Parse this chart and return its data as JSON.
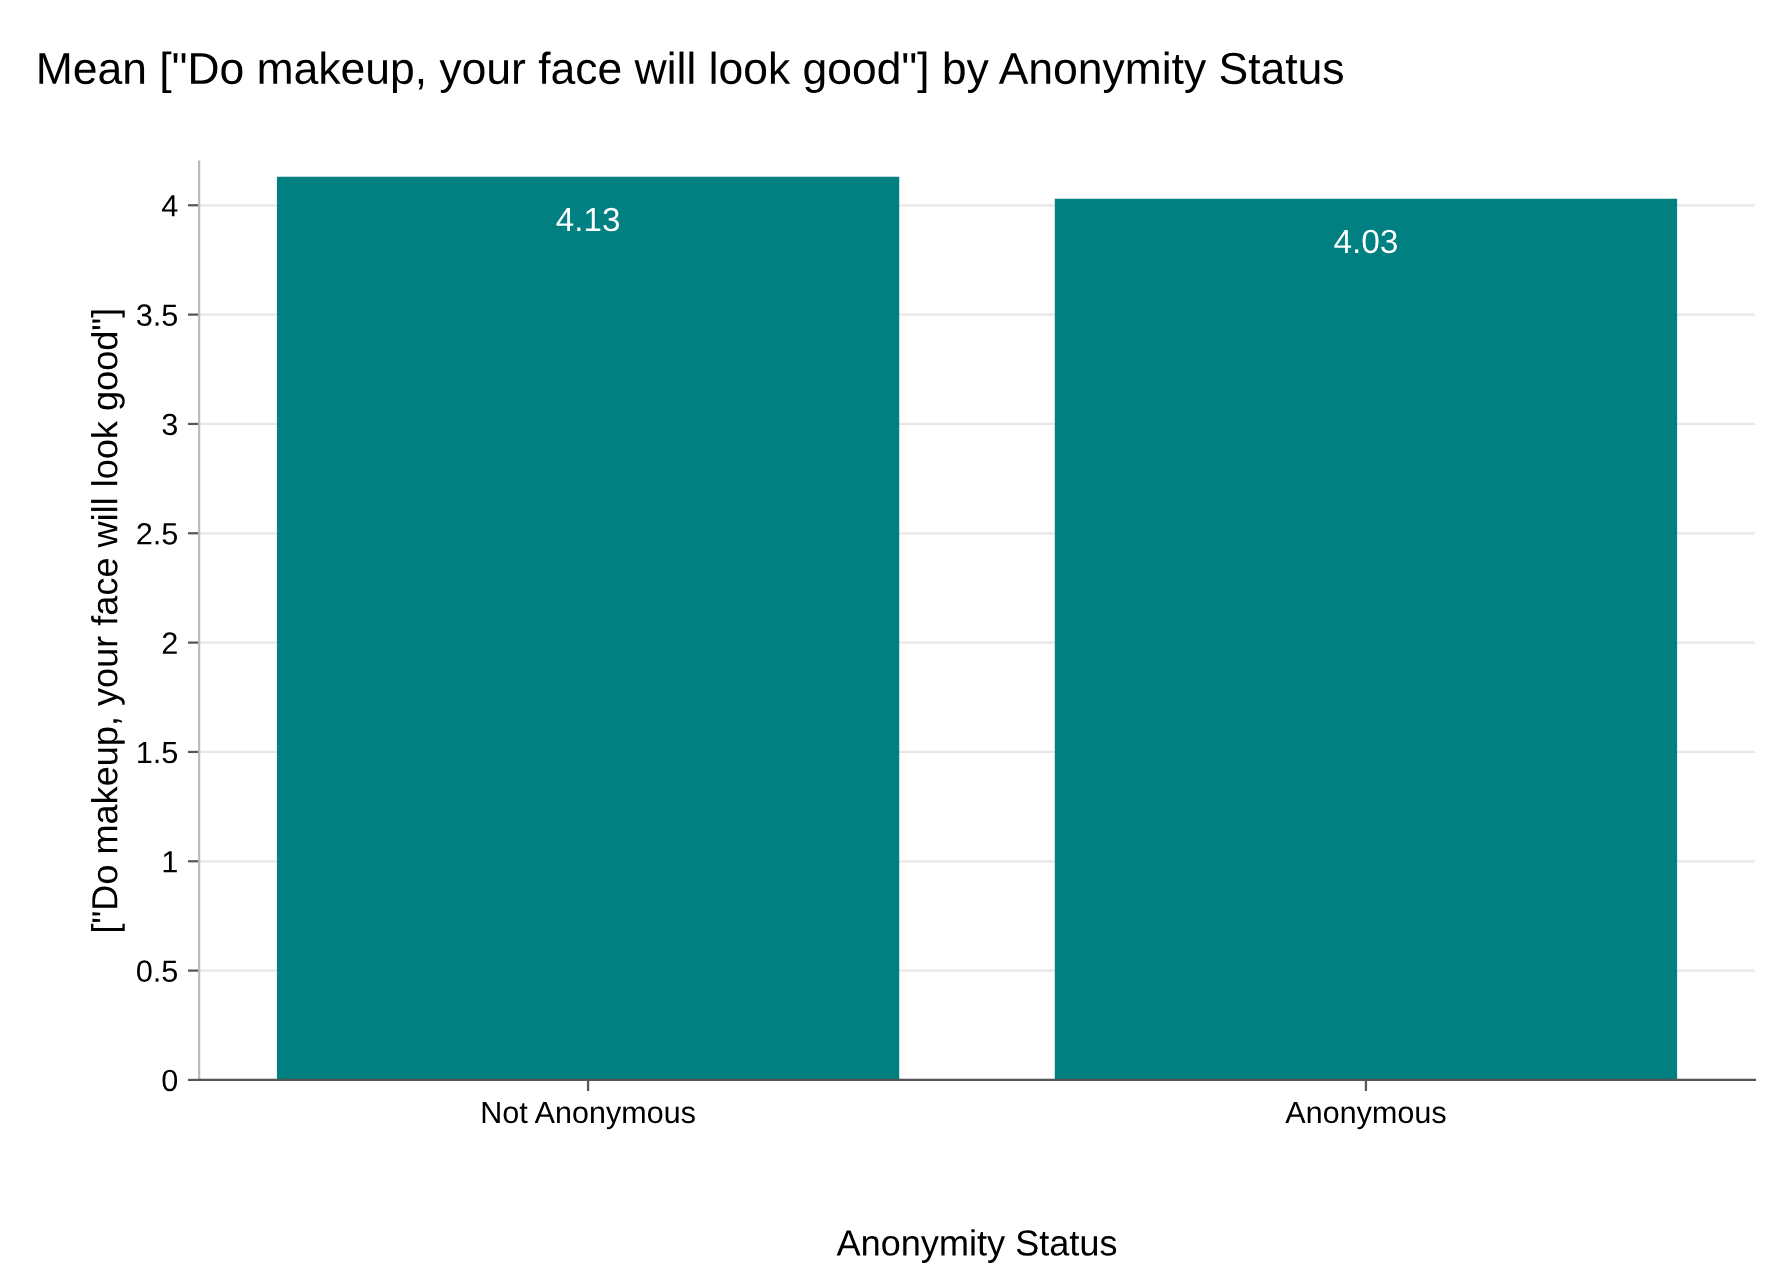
{
  "chart_data": {
    "type": "bar",
    "title": "Mean [\"Do makeup, your face will look good\"] by Anonymity Status",
    "xlabel": "Anonymity Status",
    "ylabel": "[\"Do makeup, your face will look good\"]",
    "categories": [
      "Not Anonymous",
      "Anonymous"
    ],
    "values": [
      4.13,
      4.03
    ],
    "color": "#008080",
    "ylim": [
      0,
      4.2
    ],
    "yticks": [
      0,
      0.5,
      1,
      1.5,
      2,
      2.5,
      3,
      3.5,
      4
    ],
    "grid": "y",
    "data_labels": true
  }
}
